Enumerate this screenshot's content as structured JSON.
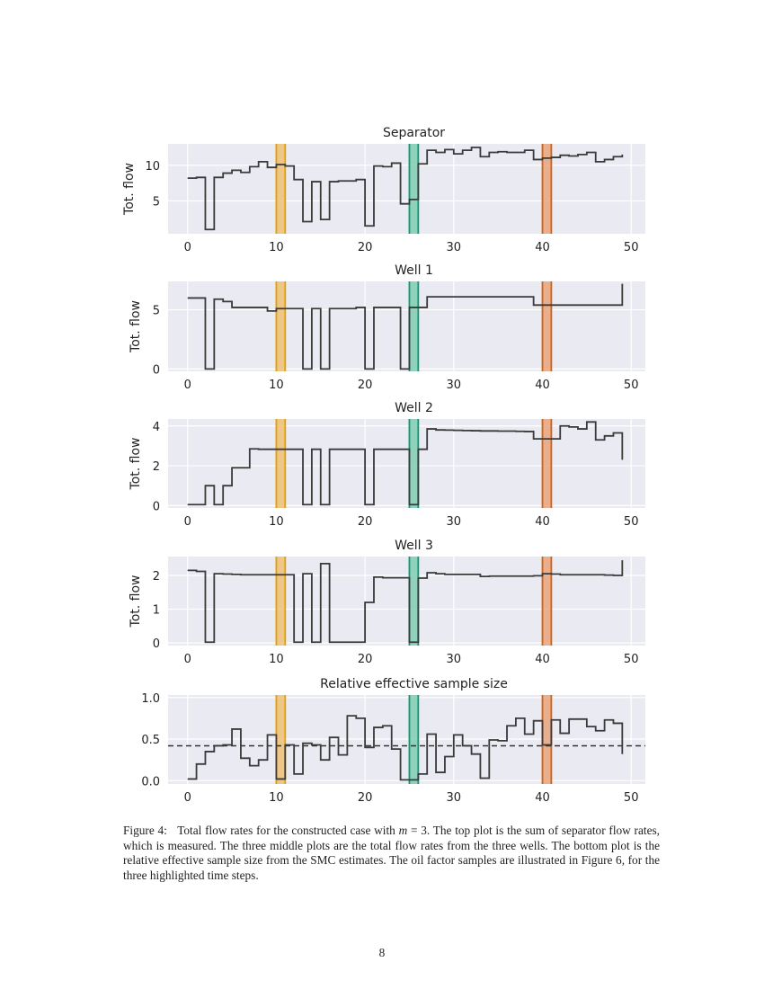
{
  "chart_data": [
    {
      "type": "line",
      "step": "post",
      "title": "Separator",
      "ylabel": "Tot. flow",
      "xlabel": "",
      "xlim": [
        -2.2,
        51.6
      ],
      "ylim": [
        0.4,
        13
      ],
      "xticks": [
        0,
        10,
        20,
        30,
        40,
        50
      ],
      "yticks": [
        5,
        10
      ],
      "ytick_labels": [
        "5",
        "10"
      ],
      "grid": true,
      "x": [
        0,
        1,
        2,
        3,
        4,
        5,
        6,
        7,
        8,
        9,
        10,
        11,
        12,
        13,
        14,
        15,
        16,
        17,
        18,
        19,
        20,
        21,
        22,
        23,
        24,
        25,
        26,
        27,
        28,
        29,
        30,
        31,
        32,
        33,
        34,
        35,
        36,
        37,
        38,
        39,
        40,
        41,
        42,
        43,
        44,
        45,
        46,
        47,
        48,
        49
      ],
      "values": [
        8.2,
        8.3,
        1.0,
        8.3,
        8.9,
        9.3,
        9.0,
        9.8,
        10.5,
        9.7,
        10.1,
        9.9,
        8.0,
        2.1,
        7.7,
        2.4,
        7.7,
        7.8,
        7.8,
        8.0,
        1.5,
        9.9,
        9.8,
        10.3,
        4.6,
        5.2,
        10.2,
        12.1,
        11.8,
        12.2,
        11.6,
        12.1,
        12.5,
        11.2,
        11.8,
        11.9,
        11.8,
        11.8,
        12.1,
        10.8,
        11.0,
        11.1,
        11.4,
        11.3,
        11.5,
        11.8,
        10.5,
        10.8,
        11.2,
        11.5
      ]
    },
    {
      "type": "line",
      "step": "post",
      "title": "Well 1",
      "ylabel": "Tot. flow",
      "xlabel": "",
      "xlim": [
        -2.2,
        51.6
      ],
      "ylim": [
        -0.2,
        7.4
      ],
      "xticks": [
        0,
        10,
        20,
        30,
        40,
        50
      ],
      "yticks": [
        0,
        5
      ],
      "ytick_labels": [
        "0",
        "5"
      ],
      "grid": true,
      "x": [
        0,
        1,
        2,
        3,
        4,
        5,
        6,
        7,
        8,
        9,
        10,
        11,
        12,
        13,
        14,
        15,
        16,
        17,
        18,
        19,
        20,
        21,
        22,
        23,
        24,
        25,
        26,
        27,
        28,
        29,
        30,
        31,
        32,
        33,
        34,
        35,
        36,
        37,
        38,
        39,
        40,
        41,
        42,
        43,
        44,
        45,
        46,
        47,
        48,
        49
      ],
      "values": [
        6.0,
        6.0,
        0,
        5.9,
        5.7,
        5.2,
        5.2,
        5.2,
        5.2,
        4.9,
        5.1,
        5.1,
        5.1,
        0,
        5.1,
        0,
        5.1,
        5.1,
        5.1,
        5.2,
        0,
        5.2,
        5.2,
        5.2,
        0,
        5.2,
        5.2,
        6.1,
        6.1,
        6.1,
        6.1,
        6.1,
        6.1,
        6.1,
        6.1,
        6.1,
        6.1,
        6.1,
        6.1,
        5.4,
        5.4,
        5.4,
        5.4,
        5.4,
        5.4,
        5.4,
        5.4,
        5.4,
        5.4,
        7.2
      ]
    },
    {
      "type": "line",
      "step": "post",
      "title": "Well 2",
      "ylabel": "Tot. flow",
      "xlabel": "",
      "xlim": [
        -2.2,
        51.6
      ],
      "ylim": [
        -0.12,
        4.35
      ],
      "xticks": [
        0,
        10,
        20,
        30,
        40,
        50
      ],
      "yticks": [
        0,
        2,
        4
      ],
      "ytick_labels": [
        "0",
        "2",
        "4"
      ],
      "grid": true,
      "x": [
        0,
        1,
        2,
        3,
        4,
        5,
        6,
        7,
        8,
        9,
        10,
        11,
        12,
        13,
        14,
        15,
        16,
        17,
        18,
        19,
        20,
        21,
        22,
        23,
        24,
        25,
        26,
        27,
        28,
        29,
        30,
        31,
        32,
        33,
        34,
        35,
        36,
        37,
        38,
        39,
        40,
        41,
        42,
        43,
        44,
        45,
        46,
        47,
        48,
        49
      ],
      "values": [
        0.05,
        0.05,
        1.0,
        0.05,
        1.0,
        1.9,
        1.9,
        2.85,
        2.83,
        2.83,
        2.83,
        2.83,
        2.83,
        0.05,
        2.83,
        0.05,
        2.83,
        2.83,
        2.83,
        2.83,
        0.05,
        2.83,
        2.83,
        2.83,
        2.83,
        0.05,
        2.83,
        3.85,
        3.8,
        3.79,
        3.78,
        3.77,
        3.76,
        3.75,
        3.75,
        3.74,
        3.74,
        3.73,
        3.72,
        3.35,
        3.35,
        3.35,
        4.0,
        3.95,
        3.85,
        4.2,
        3.3,
        3.5,
        3.65,
        2.3
      ]
    },
    {
      "type": "line",
      "step": "post",
      "title": "Well 3",
      "ylabel": "Tot. flow",
      "xlabel": "",
      "xlim": [
        -2.2,
        51.6
      ],
      "ylim": [
        -0.08,
        2.56
      ],
      "xticks": [
        0,
        10,
        20,
        30,
        40,
        50
      ],
      "yticks": [
        0,
        1,
        2
      ],
      "ytick_labels": [
        "0",
        "1",
        "2"
      ],
      "grid": true,
      "x": [
        0,
        1,
        2,
        3,
        4,
        5,
        6,
        7,
        8,
        9,
        10,
        11,
        12,
        13,
        14,
        15,
        16,
        17,
        18,
        19,
        20,
        21,
        22,
        23,
        24,
        25,
        26,
        27,
        28,
        29,
        30,
        31,
        32,
        33,
        34,
        35,
        36,
        37,
        38,
        39,
        40,
        41,
        42,
        43,
        44,
        45,
        46,
        47,
        48,
        49
      ],
      "values": [
        2.15,
        2.12,
        0.02,
        2.05,
        2.04,
        2.03,
        2.02,
        2.02,
        2.02,
        2.02,
        2.02,
        2.02,
        0.02,
        2.05,
        0.02,
        2.35,
        0.02,
        0.02,
        0.02,
        0.02,
        1.2,
        1.95,
        1.93,
        1.93,
        1.93,
        0.02,
        1.92,
        2.08,
        2.05,
        2.03,
        2.03,
        2.03,
        2.03,
        1.97,
        1.98,
        1.98,
        1.98,
        1.98,
        1.98,
        1.99,
        2.05,
        2.04,
        2.02,
        2.02,
        2.02,
        2.02,
        2.02,
        2.01,
        2.0,
        2.45
      ]
    },
    {
      "type": "line",
      "step": "post",
      "title": "Relative effective sample size",
      "ylabel": "",
      "xlabel": "",
      "xlim": [
        -2.2,
        51.6
      ],
      "ylim": [
        -0.04,
        1.03
      ],
      "xticks": [
        0,
        10,
        20,
        30,
        40,
        50
      ],
      "yticks": [
        0,
        0.5,
        1.0
      ],
      "ytick_labels": [
        "0.0",
        "0.5",
        "1.0"
      ],
      "grid": true,
      "reference_line": {
        "y": 0.42,
        "style": "dashed"
      },
      "x": [
        0,
        1,
        2,
        3,
        4,
        5,
        6,
        7,
        8,
        9,
        10,
        11,
        12,
        13,
        14,
        15,
        16,
        17,
        18,
        19,
        20,
        21,
        22,
        23,
        24,
        25,
        26,
        27,
        28,
        29,
        30,
        31,
        32,
        33,
        34,
        35,
        36,
        37,
        38,
        39,
        40,
        41,
        42,
        43,
        44,
        45,
        46,
        47,
        48,
        49
      ],
      "values": [
        0.02,
        0.2,
        0.35,
        0.42,
        0.43,
        0.62,
        0.27,
        0.18,
        0.25,
        0.55,
        0.02,
        0.43,
        0.08,
        0.45,
        0.43,
        0.25,
        0.52,
        0.31,
        0.78,
        0.75,
        0.4,
        0.64,
        0.66,
        0.38,
        0.01,
        0.01,
        0.08,
        0.56,
        0.1,
        0.29,
        0.55,
        0.42,
        0.32,
        0.03,
        0.49,
        0.48,
        0.66,
        0.75,
        0.56,
        0.72,
        0.43,
        0.73,
        0.57,
        0.74,
        0.74,
        0.65,
        0.6,
        0.73,
        0.69,
        0.32
      ]
    }
  ],
  "highlight_bands": [
    {
      "x": [
        10,
        11
      ],
      "edge": "#e69f00",
      "fill": "#efc176"
    },
    {
      "x": [
        25,
        26
      ],
      "edge": "#0b9a72",
      "fill": "#80cdb3"
    },
    {
      "x": [
        40,
        41
      ],
      "edge": "#d5600f",
      "fill": "#e7a57d"
    }
  ],
  "colors": {
    "line": "#3a3a3a",
    "axes_bg": "#eaeaf2",
    "grid": "#ffffff"
  },
  "caption": {
    "label": "Figure 4:",
    "text_before_math": "Total flow rates for the constructed case with ",
    "math_var": "m",
    "text_after_math": " = 3. The top plot is the sum of separator flow rates, which is measured. The three middle plots are the total flow rates from the three wells. The bottom plot is the relative effective sample size from the SMC estimates. The oil factor samples are illustrated in Figure 6, for the three highlighted time steps."
  },
  "page_number": "8"
}
